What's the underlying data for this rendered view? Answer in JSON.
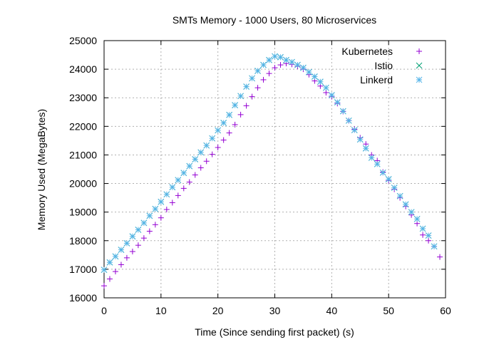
{
  "chart_data": {
    "type": "scatter",
    "title": "SMTs Memory - 1000 Users, 80 Microservices",
    "xlabel": "Time (Since sending first packet) (s)",
    "ylabel": "Memory Used (MegaBytes)",
    "xlim": [
      0,
      60
    ],
    "ylim": [
      16000,
      25000
    ],
    "xticks": [
      0,
      10,
      20,
      30,
      40,
      50,
      60
    ],
    "yticks": [
      16000,
      17000,
      18000,
      19000,
      20000,
      21000,
      22000,
      23000,
      24000,
      25000
    ],
    "grid": true,
    "legend_position": "top-right",
    "series": [
      {
        "name": "Kubernetes",
        "marker": "plus",
        "color": "#9400d3",
        "x": [
          0,
          1,
          2,
          3,
          4,
          5,
          6,
          7,
          8,
          9,
          10,
          11,
          12,
          13,
          14,
          15,
          16,
          17,
          18,
          19,
          20,
          21,
          22,
          23,
          24,
          25,
          26,
          27,
          28,
          29,
          30,
          31,
          32,
          33,
          34,
          35,
          36,
          37,
          38,
          39,
          40,
          41,
          42,
          43,
          44,
          45,
          46,
          47,
          48,
          49,
          50,
          51,
          52,
          53,
          54,
          55,
          56,
          57,
          58,
          59
        ],
        "y": [
          16420,
          16660,
          16920,
          17160,
          17400,
          17620,
          17840,
          18090,
          18330,
          18560,
          18800,
          19090,
          19330,
          19580,
          19830,
          20050,
          20300,
          20550,
          20780,
          21020,
          21260,
          21520,
          21770,
          22060,
          22410,
          22720,
          23040,
          23350,
          23630,
          23850,
          24050,
          24150,
          24200,
          24170,
          24100,
          24000,
          23810,
          23590,
          23410,
          23180,
          23040,
          22800,
          22520,
          22200,
          21900,
          21600,
          21380,
          21000,
          20800,
          20400,
          20100,
          19800,
          19500,
          19200,
          18900,
          18600,
          18200,
          18000,
          17800,
          17430
        ]
      },
      {
        "name": "Istio",
        "marker": "cross",
        "color": "#009e73",
        "x": [
          0,
          1,
          2,
          3,
          4,
          5,
          6,
          7,
          8,
          9,
          10,
          11,
          12,
          13,
          14,
          15,
          16,
          17,
          18,
          19,
          20,
          21,
          22,
          23,
          24,
          25,
          26,
          27,
          28,
          29,
          30,
          31,
          32,
          33,
          34,
          35,
          36,
          37,
          38,
          39,
          40,
          41,
          42,
          43,
          44,
          45,
          46,
          47,
          48,
          49,
          50,
          51,
          52,
          53,
          54,
          55,
          56,
          57,
          58
        ],
        "y": [
          16980,
          17240,
          17450,
          17680,
          17910,
          18150,
          18380,
          18620,
          18870,
          19110,
          19360,
          19620,
          19870,
          20120,
          20370,
          20610,
          20850,
          21090,
          21330,
          21580,
          21860,
          22120,
          22400,
          22740,
          23060,
          23390,
          23680,
          23940,
          24150,
          24320,
          24450,
          24420,
          24320,
          24250,
          24150,
          24050,
          23900,
          23740,
          23560,
          23350,
          23090,
          22840,
          22530,
          22200,
          21870,
          21540,
          21230,
          20900,
          20680,
          20380,
          20150,
          19850,
          19560,
          19270,
          19000,
          18760,
          18420,
          18180,
          17800
        ]
      },
      {
        "name": "Linkerd",
        "marker": "star",
        "color": "#56b4e9",
        "x": [
          0,
          1,
          2,
          3,
          4,
          5,
          6,
          7,
          8,
          9,
          10,
          11,
          12,
          13,
          14,
          15,
          16,
          17,
          18,
          19,
          20,
          21,
          22,
          23,
          24,
          25,
          26,
          27,
          28,
          29,
          30,
          31,
          32,
          33,
          34,
          35,
          36,
          37,
          38,
          39,
          40,
          41,
          42,
          43,
          44,
          45,
          46,
          47,
          48,
          49,
          50,
          51,
          52,
          53,
          54,
          55,
          56,
          57,
          58
        ],
        "y": [
          16980,
          17240,
          17450,
          17680,
          17910,
          18150,
          18380,
          18620,
          18870,
          19110,
          19360,
          19620,
          19870,
          20120,
          20370,
          20610,
          20850,
          21090,
          21330,
          21580,
          21860,
          22120,
          22400,
          22740,
          23060,
          23390,
          23680,
          23940,
          24150,
          24320,
          24450,
          24420,
          24320,
          24250,
          24150,
          24050,
          23900,
          23740,
          23560,
          23350,
          23090,
          22840,
          22530,
          22200,
          21870,
          21540,
          21230,
          20900,
          20680,
          20380,
          20150,
          19850,
          19560,
          19270,
          19000,
          18760,
          18420,
          18180,
          17800
        ]
      }
    ]
  }
}
